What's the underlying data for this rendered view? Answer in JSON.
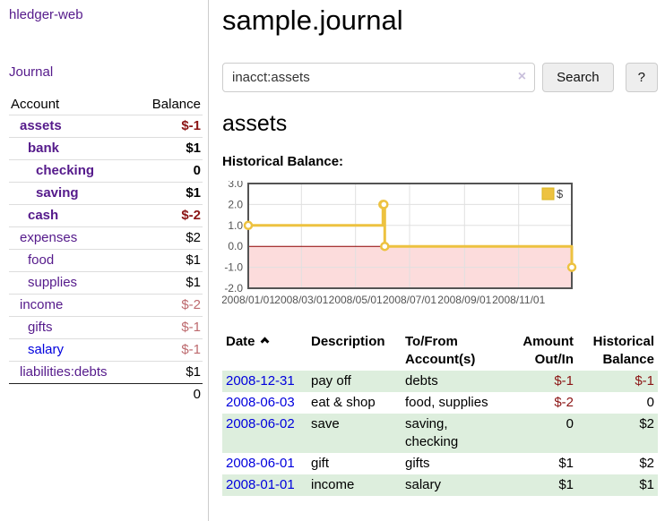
{
  "colors": {
    "link_purple": "#551a8b",
    "link_blue": "#0000dd",
    "negative_strong": "#8b1414",
    "negative_muted": "#bd6a6e",
    "row_green": "#ddeedd",
    "axis_text": "#545454",
    "chart_line": "#edc240",
    "chart_negative_fill": "#fcdcdc",
    "zero_line": "#8b0000",
    "chart_border": "#545454",
    "gridline": "#e0e0e0"
  },
  "sidebar": {
    "app_title": "hledger-web",
    "nav_journal": "Journal",
    "table": {
      "headers": {
        "account": "Account",
        "balance": "Balance"
      },
      "rows": [
        {
          "account": "assets",
          "balance": "$-1",
          "depth": 1,
          "bold": true,
          "negative": "strong"
        },
        {
          "account": "bank",
          "balance": "$1",
          "depth": 2,
          "bold": true
        },
        {
          "account": "checking",
          "balance": "0",
          "depth": 3,
          "bold": true
        },
        {
          "account": "saving",
          "balance": "$1",
          "depth": 3,
          "bold": true
        },
        {
          "account": "cash",
          "balance": "$-2",
          "depth": 2,
          "bold": true,
          "negative": "strong"
        },
        {
          "account": "expenses",
          "balance": "$2",
          "depth": 1
        },
        {
          "account": "food",
          "balance": "$1",
          "depth": 2
        },
        {
          "account": "supplies",
          "balance": "$1",
          "depth": 2
        },
        {
          "account": "income",
          "balance": "$-2",
          "depth": 1,
          "negative": "muted"
        },
        {
          "account": "gifts",
          "balance": "$-1",
          "depth": 2,
          "negative": "muted"
        },
        {
          "account": "salary",
          "balance": "$-1",
          "depth": 2,
          "negative": "muted",
          "link_blue": true
        },
        {
          "account": "liabilities:debts",
          "balance": "$1",
          "depth": 1
        }
      ],
      "total": "0"
    }
  },
  "main": {
    "title": "sample.journal",
    "search": {
      "value": "inacct:assets",
      "clear_icon": "×",
      "button_label": "Search",
      "help_label": "?"
    },
    "account_heading": "assets",
    "chart_heading": "Historical Balance:"
  },
  "chart_data": {
    "type": "line",
    "title": "Historical Balance",
    "step": true,
    "series": [
      {
        "name": "$",
        "points": [
          {
            "date": "2008-01-01",
            "value": 1
          },
          {
            "date": "2008-06-01",
            "value": 2
          },
          {
            "date": "2008-06-02",
            "value": 2
          },
          {
            "date": "2008-06-03",
            "value": 0
          },
          {
            "date": "2008-12-31",
            "value": -1
          }
        ]
      }
    ],
    "x_range": [
      "2008-01-01",
      "2008-12-31"
    ],
    "x_tick_labels": [
      "2008/01/01",
      "2008/03/01",
      "2008/05/01",
      "2008/07/01",
      "2008/09/01",
      "2008/11/01"
    ],
    "y_ticks": [
      3.0,
      2.0,
      1.0,
      0.0,
      -1.0,
      -2.0
    ],
    "y_tick_labels": [
      "3.0",
      "2.0",
      "1.0",
      "0.0",
      "-1.0",
      "-2.0"
    ],
    "ylim": [
      -2,
      3
    ],
    "grid": true,
    "negative_region_shaded": true,
    "legend": {
      "position": "top-right",
      "label": "$"
    }
  },
  "transactions": {
    "headers": {
      "date": "Date",
      "description": "Description",
      "accounts": "To/From Account(s)",
      "amount": "Amount Out/In",
      "balance": "Historical Balance"
    },
    "rows": [
      {
        "date": "2008-12-31",
        "description": "pay off",
        "accounts": "debts",
        "amount": "$-1",
        "amount_negative": true,
        "balance": "$-1",
        "balance_negative": true
      },
      {
        "date": "2008-06-03",
        "description": "eat & shop",
        "accounts": "food, supplies",
        "amount": "$-2",
        "amount_negative": true,
        "balance": "0"
      },
      {
        "date": "2008-06-02",
        "description": "save",
        "accounts": "saving, checking",
        "amount": "0",
        "balance": "$2"
      },
      {
        "date": "2008-06-01",
        "description": "gift",
        "accounts": "gifts",
        "amount": "$1",
        "balance": "$2"
      },
      {
        "date": "2008-01-01",
        "description": "income",
        "accounts": "salary",
        "amount": "$1",
        "balance": "$1"
      }
    ]
  }
}
